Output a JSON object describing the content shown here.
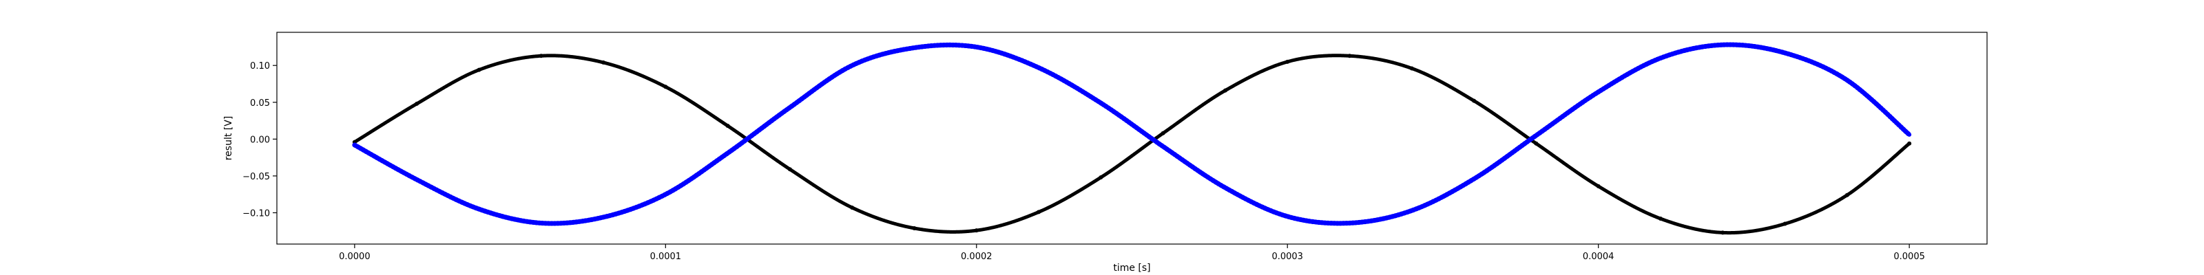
{
  "chart_data": {
    "type": "scatter",
    "title": "",
    "xlabel": "time [s]",
    "ylabel": "result [V]",
    "xlim": [
      -2.5e-05,
      0.000525
    ],
    "ylim": [
      -0.1425,
      0.145
    ],
    "grid": false,
    "x_ticks": [
      0.0,
      0.0001,
      0.0002,
      0.0003,
      0.0004,
      0.0005
    ],
    "x_tick_labels": [
      "0.0000",
      "0.0001",
      "0.0002",
      "0.0003",
      "0.0004",
      "0.0005"
    ],
    "y_ticks": [
      -0.1,
      -0.05,
      0.0,
      0.05,
      0.1
    ],
    "y_tick_labels": [
      "−0.10",
      "−0.05",
      "0.00",
      "0.05",
      "0.10"
    ],
    "series": [
      {
        "color": "#000000",
        "marker": "dot",
        "x": [
          0.0,
          2e-05,
          4e-05,
          6e-05,
          8e-05,
          0.0001,
          0.00012,
          0.00014,
          0.00016,
          0.00018,
          0.0002,
          0.00022,
          0.00024,
          0.00026,
          0.00028,
          0.0003,
          0.00032,
          0.00034,
          0.00036,
          0.00038,
          0.0004,
          0.00042,
          0.00044,
          0.00046,
          0.00048,
          0.0005
        ],
        "y": [
          -0.004,
          0.048,
          0.094,
          0.113,
          0.104,
          0.071,
          0.018,
          -0.041,
          -0.093,
          -0.121,
          -0.124,
          -0.099,
          -0.052,
          0.008,
          0.066,
          0.105,
          0.113,
          0.096,
          0.052,
          -0.006,
          -0.064,
          -0.108,
          -0.127,
          -0.115,
          -0.076,
          -0.006
        ]
      },
      {
        "color": "#0000ff",
        "marker": "dot",
        "x": [
          0.0,
          2e-05,
          4e-05,
          6e-05,
          8e-05,
          0.0001,
          0.00012,
          0.00014,
          0.00016,
          0.00018,
          0.0002,
          0.00022,
          0.00024,
          0.00026,
          0.00028,
          0.0003,
          0.00032,
          0.00034,
          0.00036,
          0.00038,
          0.0004,
          0.00042,
          0.00044,
          0.00046,
          0.00048,
          0.0005
        ],
        "y": [
          -0.008,
          -0.055,
          -0.095,
          -0.114,
          -0.106,
          -0.075,
          -0.019,
          0.043,
          0.1,
          0.124,
          0.125,
          0.097,
          0.049,
          -0.01,
          -0.066,
          -0.105,
          -0.114,
          -0.097,
          -0.054,
          0.005,
          0.064,
          0.11,
          0.128,
          0.117,
          0.08,
          0.006
        ]
      }
    ]
  }
}
